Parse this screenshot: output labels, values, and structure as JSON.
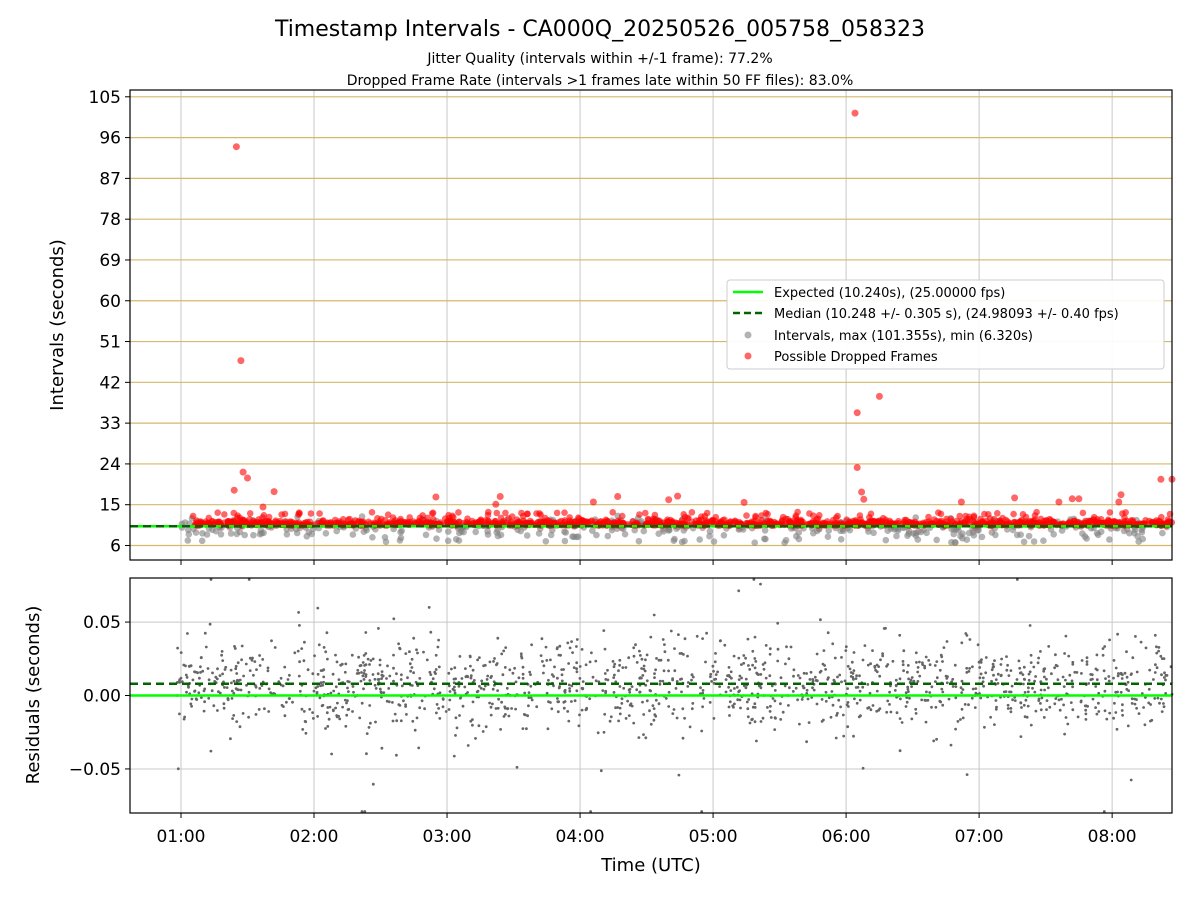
{
  "title": "Timestamp Intervals - CA000Q_20250526_005758_058323",
  "subtitle_line1": "Jitter Quality (intervals within +/-1 frame): 77.2%",
  "subtitle_line2": "Dropped Frame Rate (intervals >1 frames late within 50 FF files): 83.0%",
  "colors": {
    "expected": "#00ff00",
    "median": "#006400",
    "intervals": "#808080",
    "dropped": "#ff0000",
    "hgrid_top": "#d4b96a",
    "grid": "#c8c8c8",
    "residual_points": "#666666"
  },
  "chart_data": [
    {
      "type": "scatter",
      "panel": "top",
      "ylabel": "Intervals (seconds)",
      "ylim": [
        2.8,
        106.5
      ],
      "xlim": [
        "00:37",
        "08:27"
      ],
      "yticks": [
        "105",
        "96",
        "87",
        "78",
        "69",
        "60",
        "51",
        "42",
        "33",
        "24",
        "15",
        "6"
      ],
      "ytick_values": [
        105,
        96,
        87,
        78,
        69,
        60,
        51,
        42,
        33,
        24,
        15,
        6
      ],
      "xticks": [
        "01:00",
        "02:00",
        "03:00",
        "04:00",
        "05:00",
        "06:00",
        "07:00",
        "08:00"
      ],
      "grid": true,
      "legend_position": "center-right",
      "series": [
        {
          "name": "Expected (10.240s), (25.00000 fps)",
          "kind": "hline",
          "y": 10.24,
          "style": "solid"
        },
        {
          "name": "Median (10.248 +/- 0.305 s), (24.98093 +/- 0.40 fps)",
          "kind": "hline",
          "y": 10.248,
          "style": "dashed"
        },
        {
          "name": "Intervals, max (101.355s), min (6.320s)",
          "kind": "scatter",
          "band": [
            6.3,
            13.0
          ],
          "time_range": [
            "00:58",
            "08:27"
          ]
        },
        {
          "name": "Possible Dropped Frames",
          "kind": "scatter",
          "outliers": [
            {
              "t": "01:25",
              "y": 94.0
            },
            {
              "t": "01:27",
              "y": 46.8
            },
            {
              "t": "01:28",
              "y": 22.2
            },
            {
              "t": "01:30",
              "y": 20.9
            },
            {
              "t": "01:24",
              "y": 18.2
            },
            {
              "t": "01:42",
              "y": 17.9
            },
            {
              "t": "01:37",
              "y": 14.5
            },
            {
              "t": "02:55",
              "y": 16.7
            },
            {
              "t": "03:24",
              "y": 16.8
            },
            {
              "t": "03:22",
              "y": 15.1
            },
            {
              "t": "04:17",
              "y": 16.8
            },
            {
              "t": "04:06",
              "y": 15.6
            },
            {
              "t": "04:44",
              "y": 16.9
            },
            {
              "t": "04:40",
              "y": 16.1
            },
            {
              "t": "05:14",
              "y": 15.5
            },
            {
              "t": "06:04",
              "y": 101.4
            },
            {
              "t": "06:15",
              "y": 38.9
            },
            {
              "t": "06:05",
              "y": 35.3
            },
            {
              "t": "06:05",
              "y": 23.2
            },
            {
              "t": "06:07",
              "y": 17.8
            },
            {
              "t": "06:08",
              "y": 16.2
            },
            {
              "t": "06:52",
              "y": 15.6
            },
            {
              "t": "07:16",
              "y": 16.5
            },
            {
              "t": "07:36",
              "y": 15.6
            },
            {
              "t": "07:42",
              "y": 16.3
            },
            {
              "t": "07:45",
              "y": 16.3
            },
            {
              "t": "08:04",
              "y": 17.2
            },
            {
              "t": "08:03",
              "y": 15.6
            },
            {
              "t": "08:22",
              "y": 20.6
            },
            {
              "t": "08:27",
              "y": 20.6
            }
          ],
          "band": [
            9.0,
            13.5
          ],
          "time_range": [
            "01:05",
            "08:27"
          ]
        }
      ]
    },
    {
      "type": "scatter",
      "panel": "bottom",
      "ylabel": "Residuals (seconds)",
      "xlabel": "Time (UTC)",
      "ylim": [
        -0.08,
        0.08
      ],
      "yticks": [
        "0.05",
        "0.00",
        "−0.05"
      ],
      "ytick_values": [
        0.05,
        0.0,
        -0.05
      ],
      "xticks": [
        "01:00",
        "02:00",
        "03:00",
        "04:00",
        "05:00",
        "06:00",
        "07:00",
        "08:00"
      ],
      "grid": true,
      "series": [
        {
          "name": "Expected",
          "kind": "hline",
          "y": 0.0,
          "style": "solid"
        },
        {
          "name": "Median",
          "kind": "hline",
          "y": 0.008,
          "style": "dashed"
        },
        {
          "name": "Residuals",
          "kind": "scatter",
          "mean": 0.007,
          "spread": 0.02,
          "time_range": [
            "00:58",
            "08:27"
          ]
        }
      ]
    }
  ]
}
